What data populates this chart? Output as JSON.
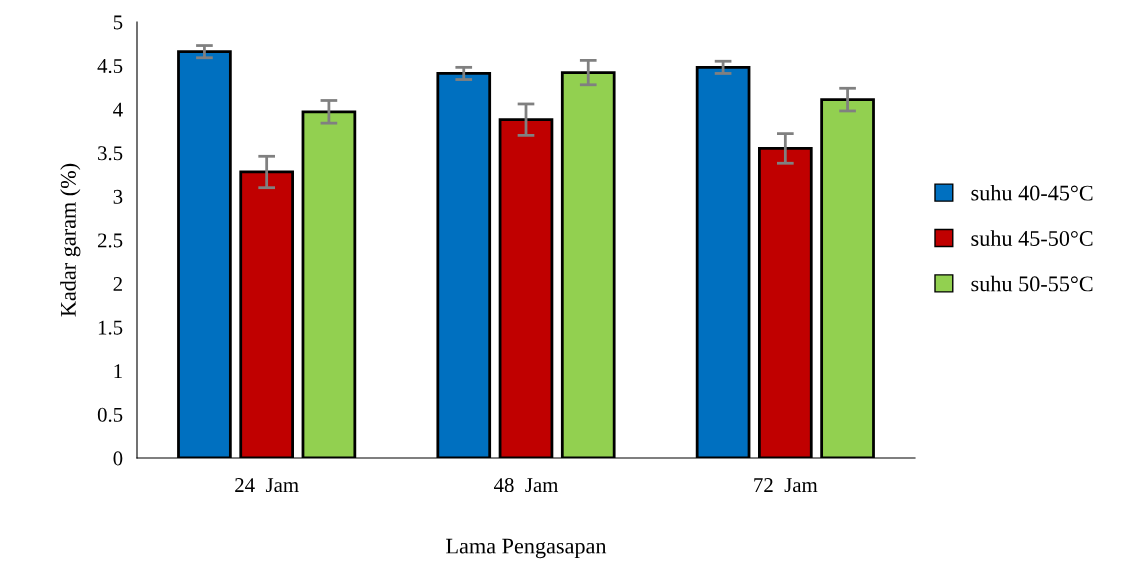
{
  "chart_data": {
    "type": "bar",
    "xlabel": "Lama Pengasapan",
    "ylabel": "Kadar garam (%)",
    "categories": [
      "24  Jam",
      "48  Jam",
      "72  Jam"
    ],
    "series": [
      {
        "name": "suhu 40-45°C",
        "color": "#0070c0",
        "values": [
          4.66,
          4.41,
          4.48
        ],
        "errors": [
          0.07,
          0.07,
          0.07
        ]
      },
      {
        "name": "suhu 45-50°C",
        "color": "#c00000",
        "values": [
          3.28,
          3.88,
          3.55
        ],
        "errors": [
          0.18,
          0.18,
          0.17
        ]
      },
      {
        "name": "suhu 50-55°C",
        "color": "#92d050",
        "values": [
          3.97,
          4.42,
          4.11
        ],
        "errors": [
          0.13,
          0.14,
          0.13
        ]
      }
    ],
    "ylim": [
      0,
      5
    ],
    "yticks": [
      0,
      0.5,
      1,
      1.5,
      2,
      2.5,
      3,
      3.5,
      4,
      4.5,
      5
    ],
    "grid": false,
    "legend": "right"
  }
}
